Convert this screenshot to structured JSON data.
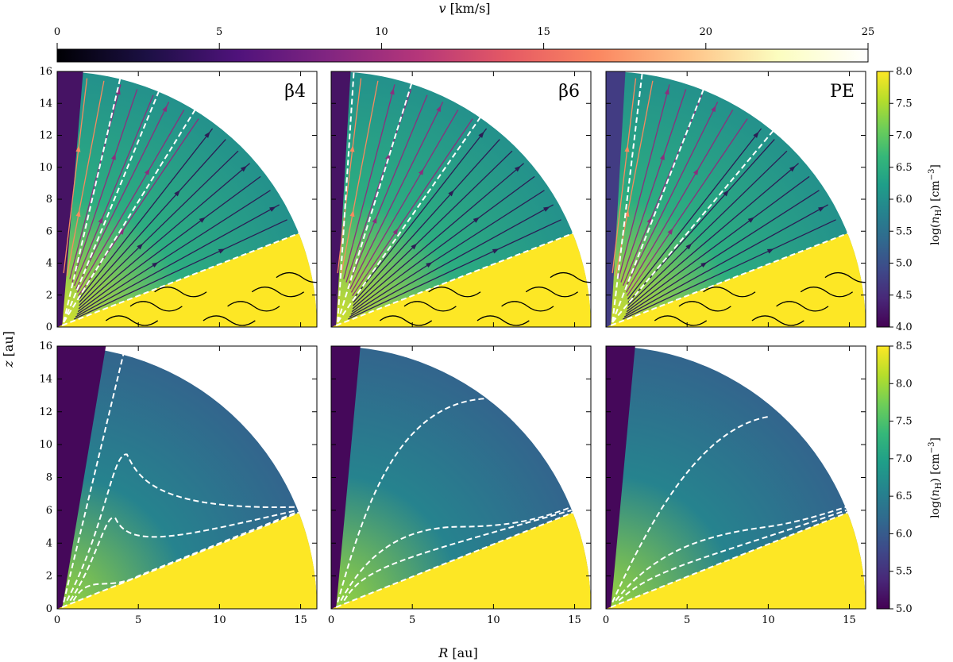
{
  "chart_data": {
    "type": "heatmap",
    "description_axes": {
      "xlabel": "R [au]",
      "ylabel": "z [au]",
      "xlim": [
        0,
        16
      ],
      "ylim": [
        0,
        16
      ],
      "xticks": [
        "0",
        "5",
        "10",
        "15"
      ],
      "yticks": [
        "0",
        "2",
        "4",
        "6",
        "8",
        "10",
        "12",
        "14",
        "16"
      ]
    },
    "velocity_colorbar": {
      "label": "v [km/s]",
      "range": [
        0,
        25
      ],
      "ticks": [
        "0",
        "5",
        "10",
        "15",
        "20",
        "25"
      ],
      "colormap": "magma"
    },
    "rows": [
      {
        "name": "top",
        "colorbar_label": "log(n_H) [cm^-3]",
        "range": [
          4.0,
          8.0
        ],
        "ticks": [
          "4.0",
          "4.5",
          "5.0",
          "5.5",
          "6.0",
          "6.5",
          "7.0",
          "7.5",
          "8.0"
        ],
        "colormap": "viridis",
        "has_streamlines": true
      },
      {
        "name": "bottom",
        "colorbar_label": "log(n_H) [cm^-3]",
        "range": [
          5.0,
          8.5
        ],
        "ticks": [
          "5.0",
          "5.5",
          "6.0",
          "6.5",
          "7.0",
          "7.5",
          "8.0",
          "8.5"
        ],
        "colormap": "viridis",
        "has_streamlines": false
      }
    ],
    "panels": [
      {
        "label": "β4",
        "model": "beta4",
        "top_contour_angles_deg": [
          76,
          67,
          58
        ],
        "bottom_contours": "beta4"
      },
      {
        "label": "β6",
        "model": "beta6",
        "top_contour_angles_deg": [
          85,
          72,
          55
        ],
        "bottom_contours": "beta6"
      },
      {
        "label": "PE",
        "model": "PE",
        "top_contour_angles_deg": [
          82,
          68,
          50
        ],
        "bottom_contours": "PE"
      }
    ],
    "disk_surface_angle_deg": 21.5,
    "wind_base_lognH": 6.3
  },
  "axis_text": {
    "xlabel_italic": "R",
    "xlabel_unit": " [au]",
    "ylabel_italic": "z",
    "ylabel_unit": " [au]",
    "vbar_italic": "v",
    "vbar_unit": " [km/s]",
    "cbar_prefix": "log(",
    "cbar_italic": "n",
    "cbar_sub_top": "H",
    "cbar_sub_bottom": "H",
    "cbar_suffix": ") [cm",
    "cbar_exp": "−3",
    "cbar_close": "]"
  },
  "colors": {
    "contour": "#ffffff",
    "disk": "#fde725",
    "background": "#ffffff"
  }
}
